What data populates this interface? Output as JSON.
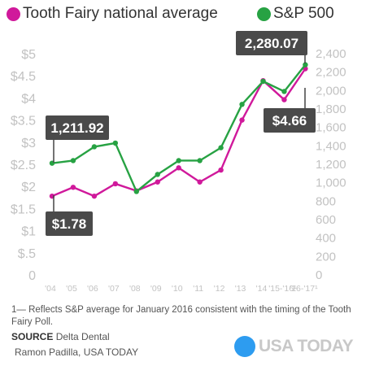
{
  "legend": [
    {
      "label": "Tooth Fairy national average",
      "color": "#d0199b"
    },
    {
      "label": "S&P 500",
      "color": "#27a243"
    }
  ],
  "chart_data": {
    "type": "line",
    "categories": [
      "'04",
      "'05",
      "'06",
      "'07",
      "'08",
      "'09",
      "'10",
      "'11",
      "'12",
      "'13",
      "'14",
      "'15-'16¹",
      "'16-'17¹"
    ],
    "series": [
      {
        "name": "Tooth Fairy national average",
        "axis": "left",
        "color": "#d0199b",
        "values": [
          1.78,
          1.98,
          1.78,
          2.06,
          1.9,
          2.1,
          2.42,
          2.1,
          2.37,
          3.5,
          4.39,
          3.96,
          4.66
        ]
      },
      {
        "name": "S&P 500",
        "axis": "right",
        "color": "#27a243",
        "values": [
          1211.92,
          1240,
          1390,
          1430,
          905,
          1090,
          1240,
          1240,
          1380,
          1850,
          2100,
          1990,
          2280.07
        ]
      }
    ],
    "left_axis": {
      "ticks": [
        "$5",
        "$4.5",
        "$4",
        "$3.5",
        "$3",
        "$2.5",
        "$2",
        "$1.5",
        "$1",
        "$.5",
        "0"
      ],
      "ylim": [
        0,
        5
      ]
    },
    "right_axis": {
      "ticks": [
        "2,400",
        "2,200",
        "2,000",
        "1,800",
        "1,600",
        "1,400",
        "1,200",
        "1,000",
        "800",
        "600",
        "400",
        "200",
        "0"
      ],
      "ylim": [
        0,
        2400
      ]
    },
    "callouts": [
      {
        "text": "1,211.92",
        "series": 1,
        "index": 0
      },
      {
        "text": "$1.78",
        "series": 0,
        "index": 0
      },
      {
        "text": "2,280.07",
        "series": 1,
        "index": 12
      },
      {
        "text": "$4.66",
        "series": 0,
        "index": 12
      }
    ]
  },
  "footnote": "1— Reflects S&P average for January 2016 consistent with the timing of the Tooth Fairy Poll.",
  "source_label": "SOURCE",
  "source_text": "Delta Dental",
  "credit": "Ramon Padilla, USA TODAY",
  "brand": "USA TODAY"
}
